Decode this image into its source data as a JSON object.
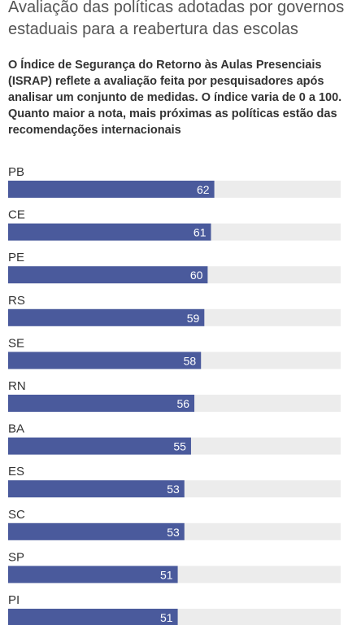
{
  "header": {
    "title": "Avaliação das políticas adotadas por governos estaduais para a reabertura das escolas",
    "subtitle": "O Índice de Segurança do Retorno às Aulas Presenciais (ISRAP) reflete a avaliação feita por pesquisadores após analisar um conjunto de medidas. O índice varia de 0 a 100. Quanto maior a nota, mais próximas as políticas estão das recomendações internacionais"
  },
  "colors": {
    "bar": "#4a5a9c",
    "track": "#ececec",
    "label": "#333333",
    "value": "#ffffff"
  },
  "chart_data": {
    "type": "bar",
    "orientation": "horizontal",
    "categories": [
      "PB",
      "CE",
      "PE",
      "RS",
      "SE",
      "RN",
      "BA",
      "ES",
      "SC",
      "SP",
      "PI"
    ],
    "values": [
      62,
      61,
      60,
      59,
      58,
      56,
      55,
      53,
      53,
      51,
      51
    ],
    "xlim": [
      0,
      100
    ],
    "grid": false,
    "legend": "none",
    "data_labels": "inside-end"
  }
}
